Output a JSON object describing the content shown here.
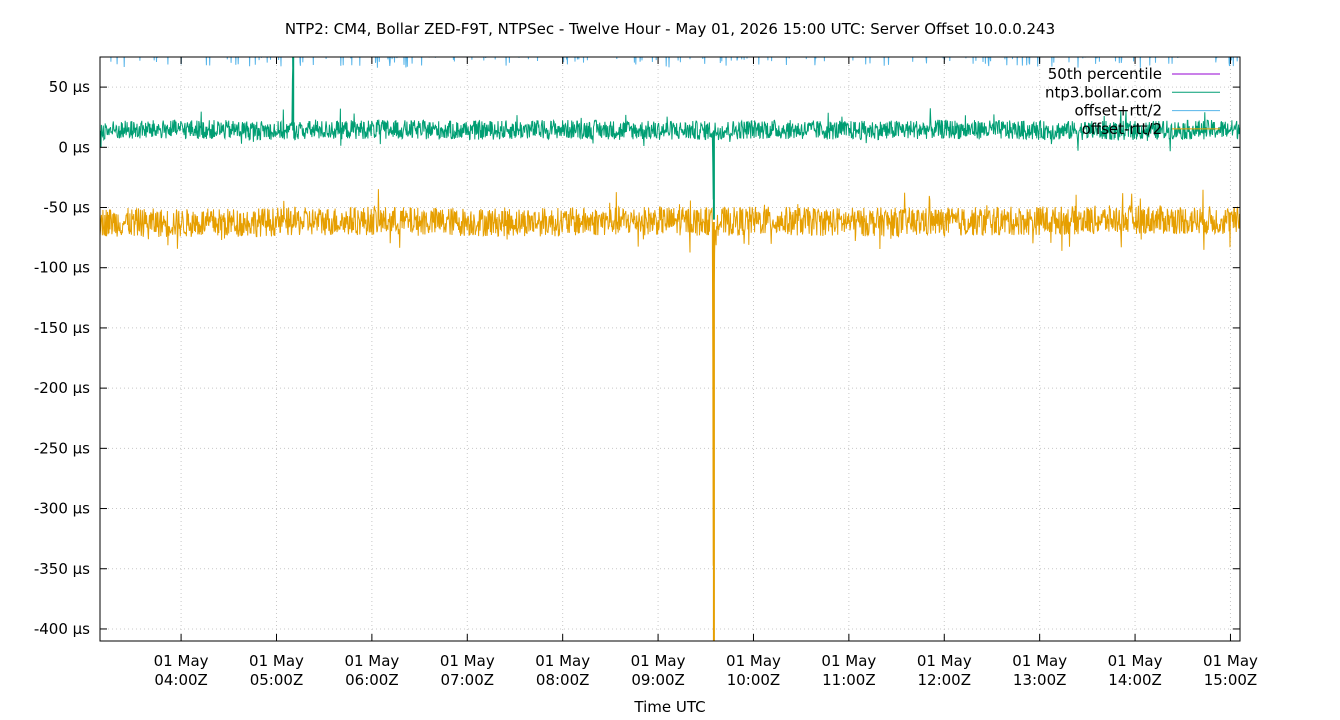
{
  "chart_data": {
    "type": "line",
    "title": "NTP2: CM4, Bollar ZED-F9T, NTPSec - Twelve Hour - May 01, 2026 15:00 UTC: Server Offset 10.0.0.243",
    "xlabel": "Time UTC",
    "ylabel": "",
    "x_unit": "hours UTC, May 01 2026",
    "xlim": [
      3.15,
      15.1
    ],
    "ylim": [
      -410,
      75
    ],
    "grid": true,
    "legend_position": "top-right",
    "y_ticks": [
      {
        "value": 50,
        "label": "50 µs"
      },
      {
        "value": 0,
        "label": "0 µs"
      },
      {
        "value": -50,
        "label": "-50 µs"
      },
      {
        "value": -100,
        "label": "-100 µs"
      },
      {
        "value": -150,
        "label": "-150 µs"
      },
      {
        "value": -200,
        "label": "-200 µs"
      },
      {
        "value": -250,
        "label": "-250 µs"
      },
      {
        "value": -300,
        "label": "-300 µs"
      },
      {
        "value": -350,
        "label": "-350 µs"
      },
      {
        "value": -400,
        "label": "-400 µs"
      }
    ],
    "x_ticks": [
      {
        "value": 4,
        "line1": "01 May",
        "line2": "04:00Z"
      },
      {
        "value": 5,
        "line1": "01 May",
        "line2": "05:00Z"
      },
      {
        "value": 6,
        "line1": "01 May",
        "line2": "06:00Z"
      },
      {
        "value": 7,
        "line1": "01 May",
        "line2": "07:00Z"
      },
      {
        "value": 8,
        "line1": "01 May",
        "line2": "08:00Z"
      },
      {
        "value": 9,
        "line1": "01 May",
        "line2": "09:00Z"
      },
      {
        "value": 10,
        "line1": "01 May",
        "line2": "10:00Z"
      },
      {
        "value": 11,
        "line1": "01 May",
        "line2": "11:00Z"
      },
      {
        "value": 12,
        "line1": "01 May",
        "line2": "12:00Z"
      },
      {
        "value": 13,
        "line1": "01 May",
        "line2": "13:00Z"
      },
      {
        "value": 14,
        "line1": "01 May",
        "line2": "14:00Z"
      },
      {
        "value": 15,
        "line1": "01 May",
        "line2": "15:00Z"
      }
    ],
    "series": [
      {
        "name": "50th percentile",
        "color": "#9400d3",
        "style": "line",
        "note_points": [],
        "x": [],
        "y": []
      },
      {
        "name": "ntp3.bollar.com",
        "color": "#009e73",
        "style": "noisy-line",
        "x": [
          3.15,
          4.0,
          5.0,
          5.16,
          5.17,
          5.18,
          6.0,
          7.0,
          8.0,
          9.0,
          9.57,
          9.58,
          9.59,
          10.0,
          11.0,
          12.0,
          13.0,
          14.0,
          15.1
        ],
        "y": [
          14,
          15,
          14,
          14,
          75,
          14,
          15,
          14,
          15,
          14,
          14,
          -60,
          14,
          15,
          14,
          15,
          14,
          14,
          15
        ],
        "spread": 8
      },
      {
        "name": "offset+rtt/2",
        "color": "#56b4e9",
        "style": "noisy-line",
        "x": [
          3.15,
          15.1
        ],
        "y": [
          82,
          82
        ],
        "spread": 6
      },
      {
        "name": "offset-rtt/2",
        "color": "#e69f00",
        "style": "noisy-line",
        "x": [
          3.15,
          4.0,
          5.0,
          6.0,
          7.0,
          8.0,
          9.0,
          9.57,
          9.58,
          9.59,
          10.0,
          11.0,
          12.0,
          13.0,
          14.0,
          15.1
        ],
        "y": [
          -62,
          -63,
          -62,
          -61,
          -62,
          -62,
          -61,
          -62,
          -410,
          -62,
          -61,
          -62,
          -62,
          -61,
          -60,
          -61
        ],
        "spread": 12
      }
    ]
  }
}
